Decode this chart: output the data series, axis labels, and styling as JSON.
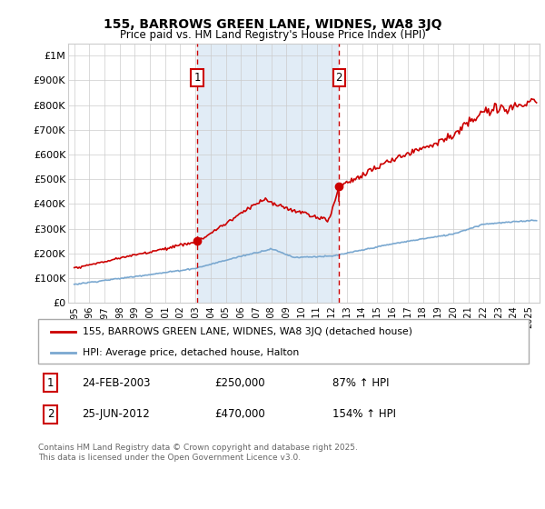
{
  "title": "155, BARROWS GREEN LANE, WIDNES, WA8 3JQ",
  "subtitle": "Price paid vs. HM Land Registry's House Price Index (HPI)",
  "legend_line1": "155, BARROWS GREEN LANE, WIDNES, WA8 3JQ (detached house)",
  "legend_line2": "HPI: Average price, detached house, Halton",
  "sale1_date": "24-FEB-2003",
  "sale1_price": "£250,000",
  "sale1_hpi": "87% ↑ HPI",
  "sale1_year": 2003.12,
  "sale1_value": 250000,
  "sale2_date": "25-JUN-2012",
  "sale2_price": "£470,000",
  "sale2_hpi": "154% ↑ HPI",
  "sale2_year": 2012.47,
  "sale2_value": 470000,
  "footnote": "Contains HM Land Registry data © Crown copyright and database right 2025.\nThis data is licensed under the Open Government Licence v3.0.",
  "red_color": "#cc0000",
  "blue_color": "#7aa8d0",
  "bg_color": "#dce9f5",
  "grid_color": "#cccccc",
  "ylim": [
    0,
    1050000
  ],
  "xlim_left": 1994.6,
  "xlim_right": 2025.7,
  "yticks": [
    0,
    100000,
    200000,
    300000,
    400000,
    500000,
    600000,
    700000,
    800000,
    900000,
    1000000
  ],
  "ytick_labels": [
    "£0",
    "£100K",
    "£200K",
    "£300K",
    "£400K",
    "£500K",
    "£600K",
    "£700K",
    "£800K",
    "£900K",
    "£1M"
  ]
}
